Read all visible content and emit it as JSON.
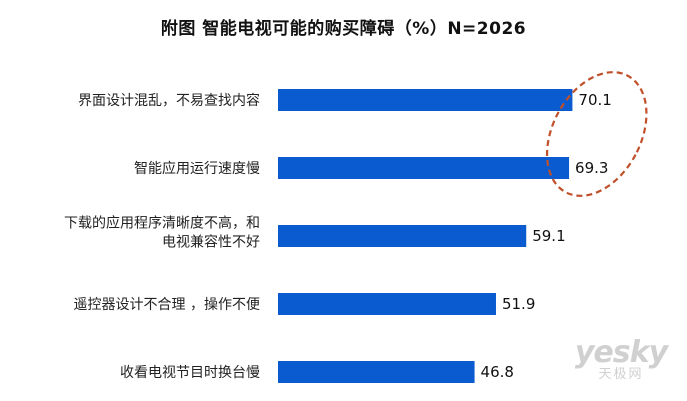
{
  "chart_data": {
    "type": "bar",
    "orientation": "horizontal",
    "title": "附图  智能电视可能的购买障碍（%）N=2026",
    "categories": [
      [
        "界面设计混乱，不易查找内容"
      ],
      [
        "智能应用运行速度慢"
      ],
      [
        "下载的应用程序清晰度不高，和",
        "电视兼容性不好"
      ],
      [
        "遥控器设计不合理 ，操作不便"
      ],
      [
        "收看电视节目时换台慢"
      ]
    ],
    "values": [
      70.1,
      69.3,
      59.1,
      51.9,
      46.8
    ],
    "value_labels": [
      "70.1",
      "69.3",
      "59.1",
      "51.9",
      "46.8"
    ],
    "xlim": [
      0,
      100
    ],
    "grid": false,
    "legend": "none",
    "bar_color": "#0b5bd0",
    "highlight_color": "#c0502a",
    "highlighted_categories": [
      0,
      1
    ]
  },
  "watermark": {
    "logo": "yesky",
    "sub": "天极网"
  }
}
